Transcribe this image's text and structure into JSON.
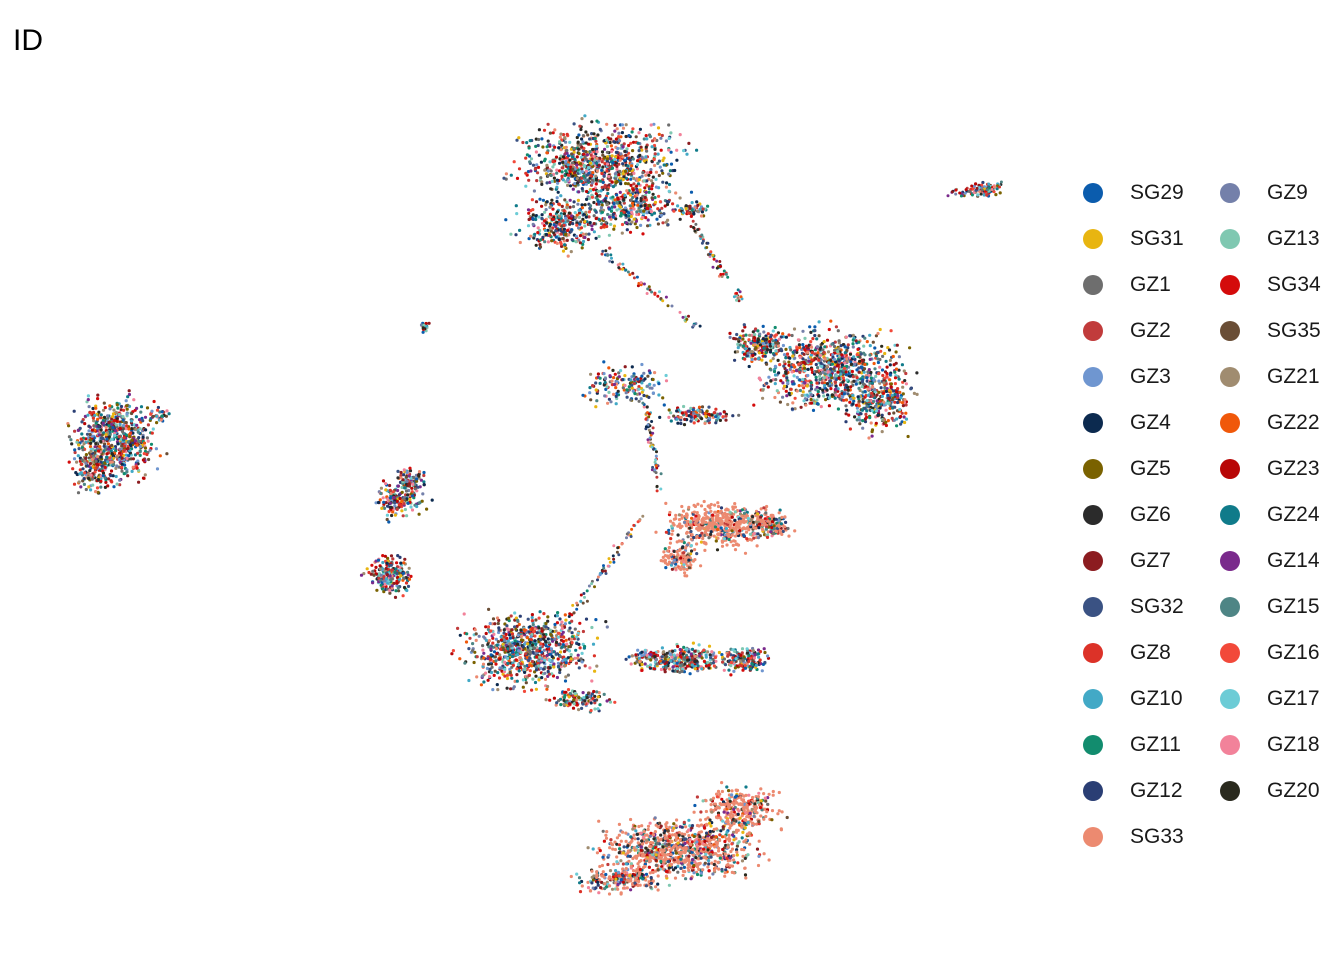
{
  "chart_data": {
    "type": "scatter",
    "title": "ID",
    "legend_position": "right",
    "grid": false,
    "axes": "none",
    "legend": [
      {
        "name": "SG29",
        "color": "#0B5CAD"
      },
      {
        "name": "SG31",
        "color": "#E8B511"
      },
      {
        "name": "GZ1",
        "color": "#6E6E6E"
      },
      {
        "name": "GZ2",
        "color": "#C13B3B"
      },
      {
        "name": "GZ3",
        "color": "#6F96D0"
      },
      {
        "name": "GZ4",
        "color": "#0C2A4F"
      },
      {
        "name": "GZ5",
        "color": "#7A6200"
      },
      {
        "name": "GZ6",
        "color": "#2B2B2B"
      },
      {
        "name": "GZ7",
        "color": "#8C1C20"
      },
      {
        "name": "SG32",
        "color": "#3A5283"
      },
      {
        "name": "GZ8",
        "color": "#DC3228"
      },
      {
        "name": "GZ10",
        "color": "#42A9C6"
      },
      {
        "name": "GZ11",
        "color": "#128C6E"
      },
      {
        "name": "GZ12",
        "color": "#2A3E74"
      },
      {
        "name": "SG33",
        "color": "#EC8A70"
      },
      {
        "name": "GZ9",
        "color": "#7480AA"
      },
      {
        "name": "GZ13",
        "color": "#7FC8B1"
      },
      {
        "name": "SG34",
        "color": "#D40B0B"
      },
      {
        "name": "SG35",
        "color": "#6A4E36"
      },
      {
        "name": "GZ21",
        "color": "#A08C70"
      },
      {
        "name": "GZ22",
        "color": "#F0580A"
      },
      {
        "name": "GZ23",
        "color": "#B80606"
      },
      {
        "name": "GZ24",
        "color": "#107B8A"
      },
      {
        "name": "GZ14",
        "color": "#7A2A8C"
      },
      {
        "name": "GZ15",
        "color": "#4E8585"
      },
      {
        "name": "GZ16",
        "color": "#F2493A"
      },
      {
        "name": "GZ17",
        "color": "#6CCCD6"
      },
      {
        "name": "GZ18",
        "color": "#F2829A"
      },
      {
        "name": "GZ20",
        "color": "#2A2A1E"
      }
    ]
  }
}
